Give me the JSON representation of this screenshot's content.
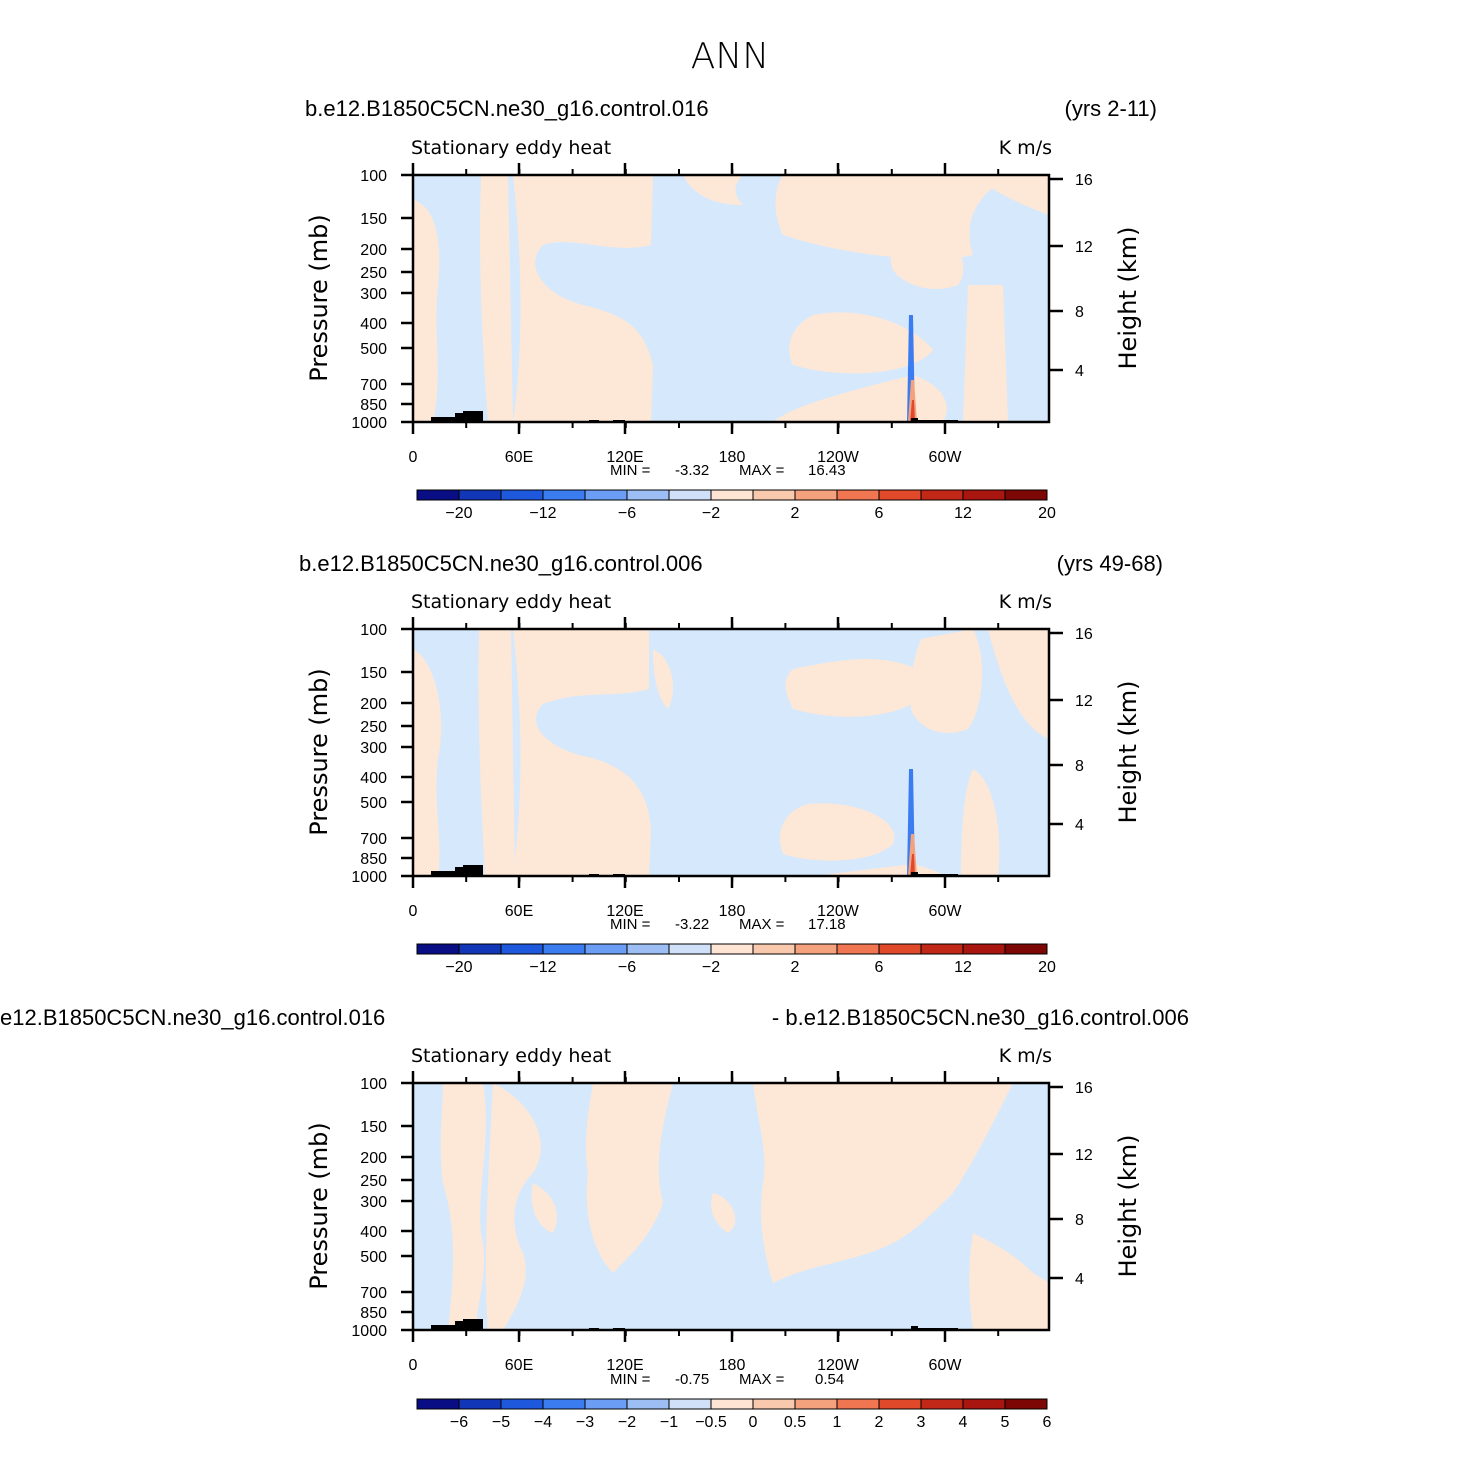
{
  "figure_title": "ANN",
  "colors": {
    "light_blue": "#d6e8fb",
    "light_peach": "#fde8d8",
    "frame": "#000000",
    "palette": [
      "#0a0e85",
      "#1236b8",
      "#1e59dd",
      "#3b7cf0",
      "#6a9df3",
      "#9dbef4",
      "#cfe0f8",
      "#fde4d3",
      "#f9c9ad",
      "#f4a27e",
      "#ef7650",
      "#e04a2a",
      "#c22818",
      "#a9160f",
      "#7c0704"
    ]
  },
  "panels": [
    {
      "title_left": "b.e12.B1850C5CN.ne30_g16.control.016",
      "title_right": "(yrs 2-11)",
      "chart_data": {
        "type": "heatmap",
        "variable_label": "Stationary eddy heat",
        "units_label": "K m/s",
        "xlabel": "",
        "ylabel": "Pressure (mb)",
        "ylabel_right": "Height (km)",
        "x_ticks": [
          "0",
          "60E",
          "120E",
          "180",
          "120W",
          "60W"
        ],
        "y_ticks": [
          "100",
          "150",
          "200",
          "250",
          "300",
          "400",
          "500",
          "700",
          "850",
          "1000"
        ],
        "y_ticks_right": [
          "16",
          "12",
          "8",
          "4"
        ],
        "min_label": "MIN =",
        "min_value": "-3.32",
        "max_label": "MAX =",
        "max_value": "16.43",
        "colorbar_labels": [
          "-20",
          "-12",
          "-6",
          "-2",
          "2",
          "6",
          "12",
          "20"
        ]
      }
    },
    {
      "title_left": "b.e12.B1850C5CN.ne30_g16.control.006",
      "title_right": "(yrs 49-68)",
      "chart_data": {
        "type": "heatmap",
        "variable_label": "Stationary eddy heat",
        "units_label": "K m/s",
        "xlabel": "",
        "ylabel": "Pressure (mb)",
        "ylabel_right": "Height (km)",
        "x_ticks": [
          "0",
          "60E",
          "120E",
          "180",
          "120W",
          "60W"
        ],
        "y_ticks": [
          "100",
          "150",
          "200",
          "250",
          "300",
          "400",
          "500",
          "700",
          "850",
          "1000"
        ],
        "y_ticks_right": [
          "16",
          "12",
          "8",
          "4"
        ],
        "min_label": "MIN =",
        "min_value": "-3.22",
        "max_label": "MAX =",
        "max_value": "17.18",
        "colorbar_labels": [
          "-20",
          "-12",
          "-6",
          "-2",
          "2",
          "6",
          "12",
          "20"
        ]
      }
    },
    {
      "title_left": "e12.B1850C5CN.ne30_g16.control.016",
      "title_right": "- b.e12.B1850C5CN.ne30_g16.control.006",
      "chart_data": {
        "type": "heatmap",
        "variable_label": "Stationary eddy heat",
        "units_label": "K m/s",
        "xlabel": "",
        "ylabel": "Pressure (mb)",
        "ylabel_right": "Height (km)",
        "x_ticks": [
          "0",
          "60E",
          "120E",
          "180",
          "120W",
          "60W"
        ],
        "y_ticks": [
          "100",
          "150",
          "200",
          "250",
          "300",
          "400",
          "500",
          "700",
          "850",
          "1000"
        ],
        "y_ticks_right": [
          "16",
          "12",
          "8",
          "4"
        ],
        "min_label": "MIN =",
        "min_value": "-0.75",
        "max_label": "MAX =",
        "max_value": "0.54",
        "colorbar_labels": [
          "-6",
          "-5",
          "-4",
          "-3",
          "-2",
          "-1",
          "-0.5",
          "0",
          "0.5",
          "1",
          "2",
          "3",
          "4",
          "5",
          "6"
        ]
      }
    }
  ]
}
